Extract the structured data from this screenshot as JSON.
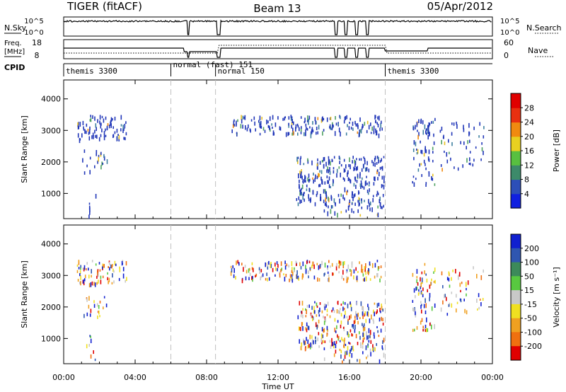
{
  "header": {
    "title": "TIGER (fitACF)",
    "beam": "Beam 13",
    "date": "05/Apr/2012"
  },
  "status_panels": {
    "nsky_label": "N.Sky",
    "nsky_ticks": [
      "10^5",
      "10^0"
    ],
    "nsearch_label": "N.Search",
    "nsearch_ticks": [
      "10^5",
      "10^0"
    ],
    "freq_label": "Freq.",
    "freq_unit": "[MHz]",
    "freq_ticks": [
      "18",
      "8"
    ],
    "nave_label": "Nave",
    "nave_ticks": [
      "60",
      "0"
    ],
    "cpid_label": "CPID",
    "cpid_segments": [
      {
        "label": "themis 3300",
        "start_h": 0.0,
        "end_h": 6.0
      },
      {
        "label": "normal (fast) 151",
        "start_h": 6.0,
        "end_h": 8.5
      },
      {
        "label": "normal 150",
        "start_h": 8.5,
        "end_h": 18.0
      },
      {
        "label": "themis 3300",
        "start_h": 18.0,
        "end_h": 24.0
      }
    ]
  },
  "chart_data": [
    {
      "type": "heatmap",
      "parameter": "power",
      "ylabel": "Slant Range [km]",
      "ylim": [
        200,
        4600
      ],
      "yticks": [
        1000,
        2000,
        3000,
        4000
      ],
      "xlim": [
        0,
        24
      ],
      "colorbar_label": "Power [dB]",
      "colorbar_ticks": [
        "4",
        "8",
        "12",
        "16",
        "20",
        "24",
        "28"
      ],
      "colorbar_colors": [
        "#1020e0",
        "#2d4fb8",
        "#3d8a6a",
        "#58c040",
        "#e8d020",
        "#f08a10",
        "#e83010",
        "#e00000"
      ],
      "scatter_regions": [
        {
          "t0": 0.7,
          "t1": 3.5,
          "r0": 2750,
          "r1": 3500,
          "weight": 1.0
        },
        {
          "t0": 1.0,
          "t1": 2.5,
          "r0": 1700,
          "r1": 2400,
          "weight": 0.5
        },
        {
          "t0": 1.2,
          "t1": 1.8,
          "r0": 300,
          "r1": 1100,
          "weight": 0.35
        },
        {
          "t0": 9.3,
          "t1": 17.8,
          "r0": 2900,
          "r1": 3500,
          "weight": 1.0
        },
        {
          "t0": 13.0,
          "t1": 17.9,
          "r0": 700,
          "r1": 2200,
          "weight": 1.0
        },
        {
          "t0": 14.5,
          "t1": 17.9,
          "r0": 300,
          "r1": 700,
          "weight": 0.5
        },
        {
          "t0": 19.5,
          "t1": 20.8,
          "r0": 1300,
          "r1": 3400,
          "weight": 0.7
        },
        {
          "t0": 21.0,
          "t1": 23.5,
          "r0": 1800,
          "r1": 3300,
          "weight": 0.35
        }
      ]
    },
    {
      "type": "heatmap",
      "parameter": "velocity",
      "ylabel": "Slant Range [km]",
      "ylim": [
        200,
        4600
      ],
      "yticks": [
        1000,
        2000,
        3000,
        4000
      ],
      "xlim": [
        0,
        24
      ],
      "xticks": [
        "00:00",
        "04:00",
        "08:00",
        "12:00",
        "16:00",
        "20:00",
        "00:00"
      ],
      "xlabel": "Time UT",
      "colorbar_label": "Velocity [m s⁻¹]",
      "colorbar_ticks": [
        "200",
        "100",
        "50",
        "15",
        "-15",
        "-50",
        "-100",
        "-200"
      ],
      "colorbar_colors": [
        "#1020d0",
        "#2f56b0",
        "#3c8a5a",
        "#58c840",
        "#c8c8c8",
        "#f0e020",
        "#f0a020",
        "#f07010",
        "#e00000"
      ],
      "scatter_regions": [
        {
          "t0": 0.7,
          "t1": 3.5,
          "r0": 2750,
          "r1": 3500,
          "weight": 1.0
        },
        {
          "t0": 1.0,
          "t1": 2.5,
          "r0": 1700,
          "r1": 2400,
          "weight": 0.5
        },
        {
          "t0": 1.2,
          "t1": 1.8,
          "r0": 300,
          "r1": 1300,
          "weight": 0.35
        },
        {
          "t0": 9.3,
          "t1": 17.8,
          "r0": 2900,
          "r1": 3500,
          "weight": 1.0
        },
        {
          "t0": 13.0,
          "t1": 17.9,
          "r0": 700,
          "r1": 2200,
          "weight": 1.0
        },
        {
          "t0": 14.5,
          "t1": 17.9,
          "r0": 300,
          "r1": 700,
          "weight": 0.5
        },
        {
          "t0": 19.5,
          "t1": 20.8,
          "r0": 1300,
          "r1": 3400,
          "weight": 0.7
        },
        {
          "t0": 21.0,
          "t1": 23.5,
          "r0": 1800,
          "r1": 3300,
          "weight": 0.35
        }
      ]
    }
  ]
}
